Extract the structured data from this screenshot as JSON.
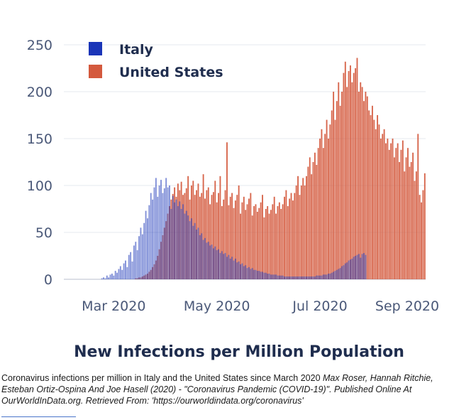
{
  "chart_data": {
    "type": "bar",
    "title": "",
    "xlabel": "New Infections per Million Population",
    "ylabel": "",
    "ylim": [
      0,
      250
    ],
    "yticks": [
      0,
      50,
      100,
      150,
      200,
      250
    ],
    "xticks": [
      "Mar 2020",
      "May 2020",
      "Jul 2020",
      "Sep 2020"
    ],
    "x_start": "2020-02-01",
    "legend_placement": "top-left",
    "grid": true,
    "overlay": true,
    "series": [
      {
        "name": "Italy",
        "color": "#1a35b8",
        "values": [
          0,
          0,
          0,
          0,
          0,
          0,
          0,
          0,
          0,
          0,
          0,
          0,
          0,
          0,
          0,
          0,
          0,
          0,
          0,
          0,
          0,
          0,
          1,
          2,
          1,
          4,
          2,
          5,
          6,
          4,
          9,
          7,
          11,
          14,
          10,
          17,
          20,
          13,
          26,
          29,
          19,
          36,
          40,
          31,
          46,
          55,
          48,
          60,
          73,
          65,
          79,
          92,
          85,
          98,
          108,
          88,
          100,
          106,
          92,
          97,
          108,
          98,
          100,
          75,
          89,
          82,
          85,
          78,
          83,
          75,
          80,
          70,
          73,
          68,
          62,
          65,
          57,
          60,
          53,
          55,
          47,
          49,
          42,
          44,
          39,
          40,
          36,
          37,
          33,
          35,
          31,
          32,
          28,
          30,
          27,
          28,
          24,
          26,
          22,
          24,
          20,
          22,
          18,
          19,
          16,
          17,
          14,
          15,
          12,
          13,
          11,
          12,
          10,
          10,
          9,
          9,
          8,
          8,
          7,
          7,
          6,
          6,
          5,
          5,
          5,
          5,
          4,
          4,
          4,
          4,
          3,
          3,
          3,
          3,
          3,
          3,
          3,
          3,
          3,
          3,
          3,
          3,
          3,
          3,
          3,
          3,
          3,
          3,
          3,
          4,
          4,
          4,
          4,
          5,
          5,
          5,
          6,
          6,
          7,
          8,
          9,
          10,
          11,
          12,
          14,
          15,
          17,
          18,
          20,
          21,
          22,
          24,
          25,
          26,
          27,
          23,
          27,
          28,
          26
        ]
      },
      {
        "name": "United States",
        "color": "#d4593d",
        "values": [
          0,
          0,
          0,
          0,
          0,
          0,
          0,
          0,
          0,
          0,
          0,
          0,
          0,
          0,
          0,
          0,
          0,
          0,
          0,
          0,
          0,
          0,
          0,
          0,
          0,
          0,
          0,
          0,
          0,
          0,
          0,
          0,
          0,
          0,
          0,
          0,
          0,
          0,
          0,
          0,
          0,
          0,
          1,
          1,
          2,
          2,
          3,
          4,
          5,
          6,
          8,
          10,
          13,
          16,
          20,
          25,
          32,
          40,
          47,
          55,
          62,
          70,
          78,
          85,
          91,
          98,
          88,
          102,
          95,
          104,
          90,
          92,
          97,
          110,
          85,
          100,
          105,
          90,
          95,
          102,
          88,
          92,
          112,
          86,
          95,
          98,
          80,
          90,
          93,
          105,
          82,
          92,
          110,
          78,
          85,
          95,
          146,
          79,
          88,
          92,
          76,
          84,
          90,
          100,
          70,
          82,
          88,
          74,
          80,
          86,
          92,
          68,
          78,
          80,
          72,
          76,
          82,
          90,
          66,
          75,
          78,
          70,
          74,
          80,
          88,
          70,
          78,
          82,
          75,
          80,
          88,
          95,
          78,
          86,
          92,
          84,
          92,
          100,
          110,
          90,
          100,
          108,
          100,
          110,
          120,
          130,
          112,
          125,
          135,
          122,
          140,
          150,
          160,
          140,
          155,
          170,
          150,
          165,
          180,
          200,
          170,
          190,
          210,
          185,
          200,
          220,
          232,
          205,
          222,
          228,
          210,
          220,
          225,
          236,
          200,
          210,
          205,
          190,
          200,
          195,
          180,
          175,
          185,
          170,
          160,
          175,
          165,
          150,
          155,
          160,
          145,
          150,
          138,
          145,
          150,
          130,
          140,
          145,
          125,
          138,
          148,
          115,
          130,
          140,
          120,
          125,
          135,
          105,
          115,
          155,
          90,
          82,
          95,
          113
        ]
      }
    ]
  },
  "caption": {
    "plain": "Coronavirus infections per million in Italy and the United States since March 2020 ",
    "source": "Max Roser, Hannah Ritchie, Esteban Ortiz-Ospina And Joe Hasell (2020) - \"Coronavirus Pandemic (COVID-19)\". Published Online At OurWorldInData.org. Retrieved From: 'https://ourworldindata.org/coronavirus'"
  }
}
